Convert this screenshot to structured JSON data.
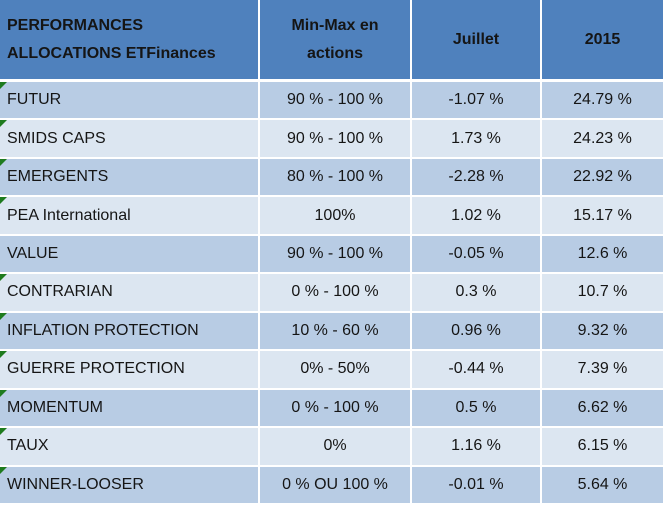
{
  "colors": {
    "header_bg": "#4f81bd",
    "header_text": "#ffffff",
    "row_dark": "#b8cce4",
    "row_light": "#dce6f1",
    "border_white": "#ffffff",
    "body_text": "#151515",
    "indicator_green": "#1e7b1e"
  },
  "table": {
    "header": {
      "title_line1": "PERFORMANCES",
      "title_line2": "ALLOCATIONS ETFinances",
      "minmax_line1": "Min-Max en",
      "minmax_line2": "actions",
      "juillet": "Juillet",
      "year": "2015"
    },
    "rows": [
      {
        "name": "FUTUR",
        "minmax": "90 % - 100 %",
        "juillet": "-1.07 %",
        "year2015": "24.79 %",
        "indicator": true
      },
      {
        "name": "SMIDS CAPS",
        "minmax": "90 % - 100 %",
        "juillet": "1.73 %",
        "year2015": "24.23 %",
        "indicator": true
      },
      {
        "name": "EMERGENTS",
        "minmax": "80 % - 100 %",
        "juillet": "-2.28 %",
        "year2015": "22.92 %",
        "indicator": true
      },
      {
        "name": "PEA International",
        "minmax": "100%",
        "juillet": "1.02 %",
        "year2015": "15.17 %",
        "indicator": true
      },
      {
        "name": "VALUE",
        "minmax": "90 % - 100 %",
        "juillet": "-0.05 %",
        "year2015": "12.6 %",
        "indicator": false
      },
      {
        "name": "CONTRARIAN",
        "minmax": "0 % - 100 %",
        "juillet": "0.3 %",
        "year2015": "10.7 %",
        "indicator": true
      },
      {
        "name": "INFLATION PROTECTION",
        "minmax": "10 % - 60 %",
        "juillet": "0.96 %",
        "year2015": "9.32 %",
        "indicator": true
      },
      {
        "name": "GUERRE PROTECTION",
        "minmax": "0% - 50%",
        "juillet": "-0.44 %",
        "year2015": "7.39 %",
        "indicator": true
      },
      {
        "name": "MOMENTUM",
        "minmax": "0 % - 100 %",
        "juillet": "0.5 %",
        "year2015": "6.62 %",
        "indicator": true
      },
      {
        "name": "TAUX",
        "minmax": "0%",
        "juillet": "1.16 %",
        "year2015": "6.15 %",
        "indicator": true
      },
      {
        "name": "WINNER-LOOSER",
        "minmax": "0 % OU 100 %",
        "juillet": "-0.01 %",
        "year2015": "5.64 %",
        "indicator": true
      }
    ]
  }
}
